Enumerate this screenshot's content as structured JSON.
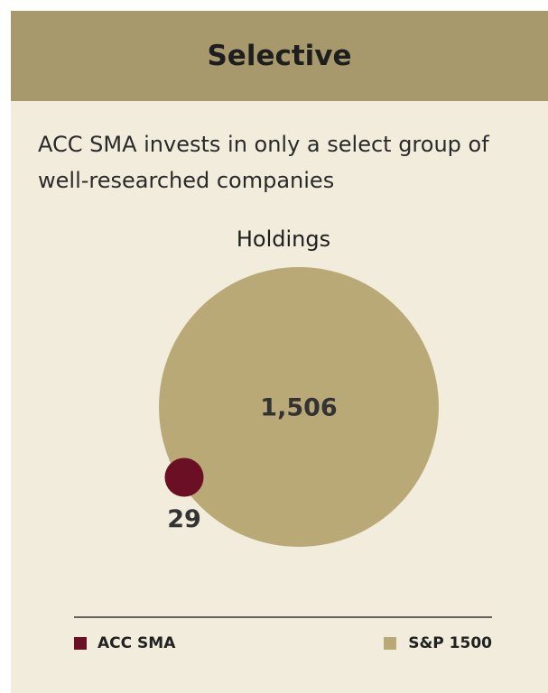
{
  "chart_data": {
    "type": "bubble",
    "header": "Selective",
    "subtitle": "ACC SMA invests in only a select group of well-researched companies",
    "title": "Holdings",
    "series": [
      {
        "name": "ACC SMA",
        "color": "#6b0f24",
        "values": [
          29
        ],
        "value_labels": [
          "29"
        ]
      },
      {
        "name": "S&P 1500",
        "color": "#b9a977",
        "values": [
          1506
        ],
        "value_labels": [
          "1,506"
        ]
      }
    ]
  }
}
